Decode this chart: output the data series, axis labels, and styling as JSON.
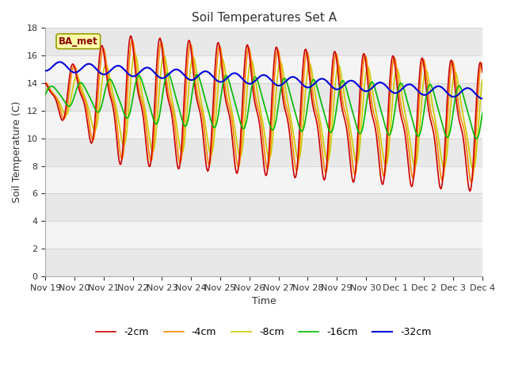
{
  "title": "Soil Temperatures Set A",
  "xlabel": "Time",
  "ylabel": "Soil Temperature (C)",
  "ylim": [
    0,
    18
  ],
  "yticks": [
    0,
    2,
    4,
    6,
    8,
    10,
    12,
    14,
    16,
    18
  ],
  "annotation_text": "BA_met",
  "legend_labels": [
    "-2cm",
    "-4cm",
    "-8cm",
    "-16cm",
    "-32cm"
  ],
  "line_colors": [
    "#cc0000",
    "#ff8800",
    "#cccc00",
    "#00bb00",
    "#0000dd"
  ],
  "line_widths": [
    1.2,
    1.2,
    1.2,
    1.2,
    1.5
  ],
  "tick_labels": [
    "Nov 19",
    "Nov 20",
    "Nov 21",
    "Nov 22",
    "Nov 23",
    "Nov 24",
    "Nov 25",
    "Nov 26",
    "Nov 27",
    "Nov 28",
    "Nov 29",
    "Nov 30",
    "Dec 1",
    "Dec 2",
    "Dec 3",
    "Dec 4"
  ],
  "background_color": "#ffffff",
  "band_colors": [
    "#e8e8e8",
    "#f4f4f4"
  ],
  "title_fontsize": 11,
  "axis_label_fontsize": 9,
  "tick_fontsize": 8
}
